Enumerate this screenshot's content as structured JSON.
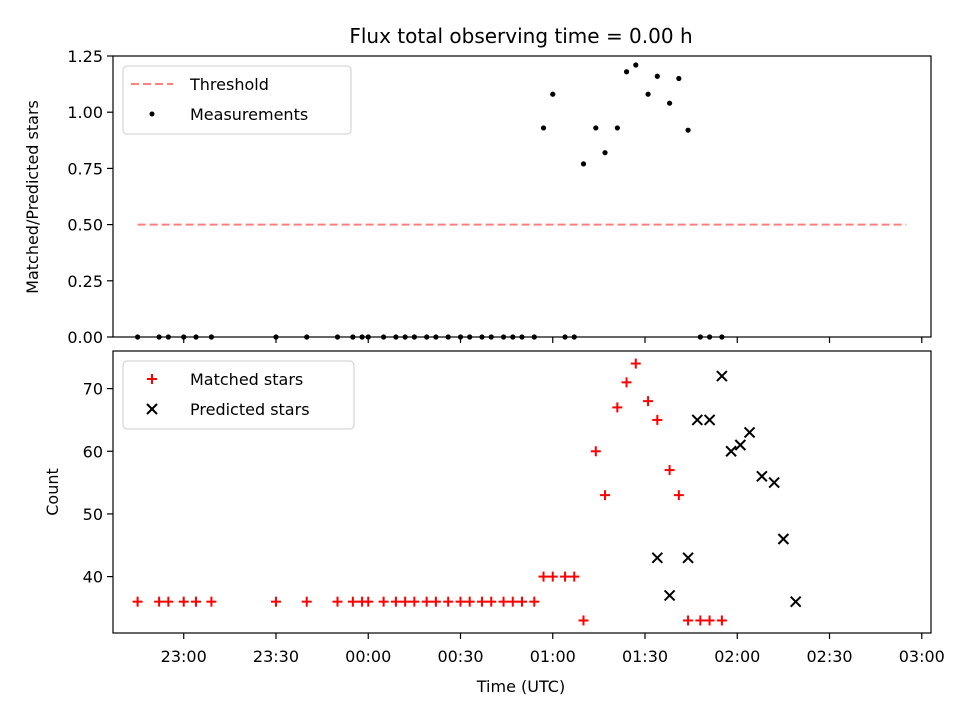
{
  "chart_data": [
    {
      "type": "line",
      "title": "Flux total observing time = 0.00 h",
      "xlabel": "",
      "ylabel": "Matched/Predicted stars",
      "xlim": [
        "22:37",
        "03:03"
      ],
      "ylim": [
        0,
        1.25
      ],
      "yticks": [
        "0.00",
        "0.25",
        "0.50",
        "0.75",
        "1.00",
        "1.25"
      ],
      "legend": "top-left",
      "series": [
        {
          "name": "Threshold",
          "style": "dashed-line",
          "color": "#ff7f7f",
          "x": [
            "22:45",
            "02:55"
          ],
          "y": [
            0.5,
            0.5
          ]
        },
        {
          "name": "Measurements",
          "style": "scatter-dot",
          "color": "#000000",
          "x": [
            "22:45",
            "22:52",
            "22:55",
            "23:00",
            "23:04",
            "23:09",
            "23:30",
            "23:40",
            "23:50",
            "23:55",
            "23:58",
            "24:00",
            "24:05",
            "24:09",
            "24:12",
            "24:15",
            "24:19",
            "24:22",
            "24:26",
            "24:30",
            "24:33",
            "24:37",
            "24:40",
            "24:44",
            "24:47",
            "24:50",
            "24:54",
            "24:57",
            "25:00",
            "25:04",
            "25:07",
            "25:10",
            "25:14",
            "25:17",
            "25:21",
            "25:24",
            "25:27",
            "25:31",
            "25:34",
            "25:38",
            "25:41",
            "25:44",
            "25:48",
            "25:51",
            "25:55"
          ],
          "y": [
            0.0,
            0.0,
            0.0,
            0.0,
            0.0,
            0.0,
            0.0,
            0.0,
            0.0,
            0.0,
            0.0,
            0.0,
            0.0,
            0.0,
            0.0,
            0.0,
            0.0,
            0.0,
            0.0,
            0.0,
            0.0,
            0.0,
            0.0,
            0.0,
            0.0,
            0.0,
            0.0,
            0.93,
            1.08,
            0.0,
            0.0,
            0.77,
            0.93,
            0.82,
            0.93,
            1.18,
            1.21,
            1.08,
            1.16,
            1.04,
            1.15,
            0.92,
            0.0,
            0.0,
            0.0
          ]
        }
      ]
    },
    {
      "type": "scatter",
      "xlabel": "Time (UTC)",
      "ylabel": "Count",
      "xlim": [
        "22:37",
        "03:03"
      ],
      "ylim": [
        31,
        76
      ],
      "xticks": [
        "23:00",
        "23:30",
        "00:00",
        "00:30",
        "01:00",
        "01:30",
        "02:00",
        "02:30",
        "03:00"
      ],
      "yticks": [
        "40",
        "50",
        "60",
        "70"
      ],
      "legend": "top-left",
      "series": [
        {
          "name": "Matched stars",
          "style": "plus",
          "color": "#ff0000",
          "x": [
            "22:45",
            "22:52",
            "22:55",
            "23:00",
            "23:04",
            "23:09",
            "23:30",
            "23:40",
            "23:50",
            "23:55",
            "23:58",
            "24:00",
            "24:05",
            "24:09",
            "24:12",
            "24:15",
            "24:19",
            "24:22",
            "24:26",
            "24:30",
            "24:33",
            "24:37",
            "24:40",
            "24:44",
            "24:47",
            "24:50",
            "24:54",
            "24:57",
            "25:00",
            "25:04",
            "25:07",
            "25:10",
            "25:14",
            "25:17",
            "25:21",
            "25:24",
            "25:27",
            "25:31",
            "25:34",
            "25:38",
            "25:41",
            "25:44",
            "25:48",
            "25:51",
            "25:55"
          ],
          "y": [
            36,
            36,
            36,
            36,
            36,
            36,
            36,
            36,
            36,
            36,
            36,
            36,
            36,
            36,
            36,
            36,
            36,
            36,
            36,
            36,
            36,
            36,
            36,
            36,
            36,
            36,
            36,
            40,
            40,
            40,
            40,
            33,
            60,
            53,
            67,
            71,
            74,
            68,
            65,
            57,
            53,
            33,
            33,
            33,
            33
          ]
        },
        {
          "name": "Predicted stars",
          "style": "x",
          "color": "#000000",
          "x": [
            "25:34",
            "25:38",
            "25:44",
            "25:47",
            "25:51",
            "25:55",
            "25:58",
            "26:01",
            "26:04",
            "26:08",
            "26:12",
            "26:15",
            "26:19"
          ],
          "y": [
            43,
            37,
            43,
            65,
            65,
            72,
            60,
            61,
            63,
            56,
            55,
            46,
            36
          ]
        }
      ]
    }
  ]
}
